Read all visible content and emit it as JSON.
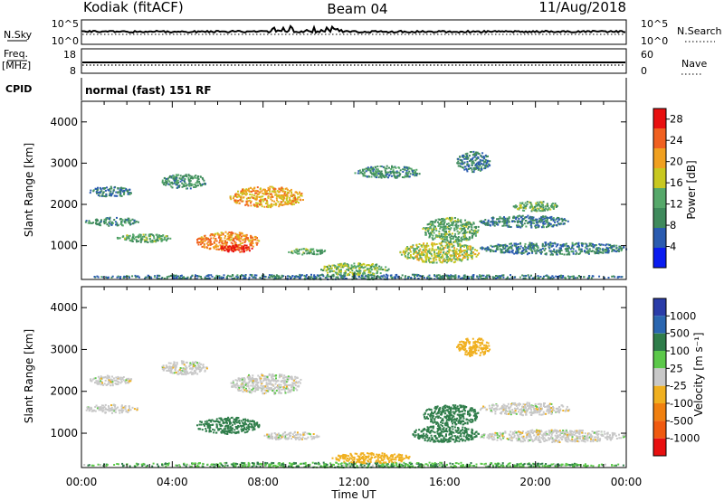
{
  "header": {
    "station": "Kodiak (fitACF)",
    "beam": "Beam 04",
    "date": "11/Aug/2018"
  },
  "noise_panel": {
    "left_label": "N.Sky",
    "left_ticks": [
      "10^5",
      "10^0"
    ],
    "right_ticks": [
      "10^5",
      "10^0"
    ],
    "right_label": "N.Search"
  },
  "freq_panel": {
    "left_label_1": "Freq.",
    "left_label_2": "[MHz]",
    "left_ticks": [
      "18",
      "8"
    ],
    "right_ticks": [
      "60",
      "0"
    ],
    "right_label": "Nave"
  },
  "cpid_panel": {
    "label": "CPID",
    "mode_text": "normal (fast) 151 RF"
  },
  "xaxis": {
    "label": "Time UT",
    "ticks": [
      "00:00",
      "04:00",
      "08:00",
      "12:00",
      "16:00",
      "20:00",
      "00:00"
    ]
  },
  "colors": {
    "power_scale": [
      "#0a1cf0",
      "#2a5bb0",
      "#3f8a5c",
      "#56a86a",
      "#c8c820",
      "#f0a020",
      "#f06020",
      "#e81010"
    ],
    "velocity_scale": [
      "#2a3ca8",
      "#2a66b0",
      "#2f7d4a",
      "#5cc84a",
      "#c8c8c8",
      "#f0b020",
      "#f08010",
      "#f05a10",
      "#e81010"
    ]
  },
  "chart_data": [
    {
      "type": "heatmap",
      "title": "",
      "xlabel": "Time UT",
      "ylabel": "Slant Range [km]",
      "xlim": [
        0,
        24
      ],
      "ylim": [
        180,
        4500
      ],
      "yticks": [
        "1000",
        "2000",
        "3000",
        "4000"
      ],
      "colorbar": {
        "label": "Power [dB]",
        "ticks": [
          "4",
          "8",
          "12",
          "16",
          "20",
          "24",
          "28"
        ],
        "range": [
          0,
          30
        ]
      },
      "features": [
        {
          "t0": 0.0,
          "t1": 24.0,
          "r0": 200,
          "r1": 320,
          "value": 8
        },
        {
          "t0": 0.1,
          "t1": 2.5,
          "r0": 1500,
          "r1": 1700,
          "value": 10
        },
        {
          "t0": 0.3,
          "t1": 2.2,
          "r0": 2200,
          "r1": 2450,
          "value": 8
        },
        {
          "t0": 1.5,
          "t1": 4.0,
          "r0": 1100,
          "r1": 1300,
          "value": 12
        },
        {
          "t0": 3.5,
          "t1": 5.5,
          "r0": 2400,
          "r1": 2750,
          "value": 10
        },
        {
          "t0": 5.0,
          "t1": 7.8,
          "r0": 900,
          "r1": 1350,
          "value": 22
        },
        {
          "t0": 6.0,
          "t1": 7.5,
          "r0": 850,
          "r1": 1050,
          "value": 28
        },
        {
          "t0": 6.5,
          "t1": 9.8,
          "r0": 1950,
          "r1": 2450,
          "value": 20
        },
        {
          "t0": 9.0,
          "t1": 10.8,
          "r0": 800,
          "r1": 950,
          "value": 12
        },
        {
          "t0": 10.5,
          "t1": 13.5,
          "r0": 300,
          "r1": 600,
          "value": 14
        },
        {
          "t0": 12.0,
          "t1": 15.0,
          "r0": 2650,
          "r1": 2950,
          "value": 10
        },
        {
          "t0": 14.0,
          "t1": 17.5,
          "r0": 600,
          "r1": 1100,
          "value": 16
        },
        {
          "t0": 15.0,
          "t1": 17.5,
          "r0": 1100,
          "r1": 1700,
          "value": 12
        },
        {
          "t0": 17.5,
          "t1": 21.5,
          "r0": 1450,
          "r1": 1750,
          "value": 8
        },
        {
          "t0": 17.5,
          "t1": 24.0,
          "r0": 800,
          "r1": 1100,
          "value": 8
        },
        {
          "t0": 16.5,
          "t1": 18.0,
          "r0": 2800,
          "r1": 3300,
          "value": 8
        },
        {
          "t0": 19.0,
          "t1": 21.0,
          "r0": 1850,
          "r1": 2100,
          "value": 12
        }
      ]
    },
    {
      "type": "heatmap",
      "title": "",
      "xlabel": "Time UT",
      "ylabel": "Slant Range [km]",
      "xlim": [
        0,
        24
      ],
      "ylim": [
        180,
        4500
      ],
      "yticks": [
        "1000",
        "2000",
        "3000",
        "4000"
      ],
      "colorbar": {
        "label": "Velocity [m s⁻¹]",
        "ticks": [
          "1000",
          "500",
          "100",
          "25",
          "-25",
          "-100",
          "-500",
          "-1000"
        ],
        "range": [
          -1000,
          1000
        ]
      },
      "features": [
        {
          "t0": 0.0,
          "t1": 24.0,
          "r0": 200,
          "r1": 320,
          "value": 50
        },
        {
          "t0": 0.1,
          "t1": 2.5,
          "r0": 1500,
          "r1": 1700,
          "value": 0
        },
        {
          "t0": 0.3,
          "t1": 2.2,
          "r0": 2150,
          "r1": 2400,
          "value": 0
        },
        {
          "t0": 3.5,
          "t1": 5.5,
          "r0": 2400,
          "r1": 2750,
          "value": 0
        },
        {
          "t0": 5.0,
          "t1": 7.8,
          "r0": 1000,
          "r1": 1400,
          "value": 100
        },
        {
          "t0": 6.5,
          "t1": 9.8,
          "r0": 1950,
          "r1": 2450,
          "value": 0
        },
        {
          "t0": 8.0,
          "t1": 10.5,
          "r0": 850,
          "r1": 1050,
          "value": 0
        },
        {
          "t0": 11.0,
          "t1": 14.5,
          "r0": 300,
          "r1": 550,
          "value": -60
        },
        {
          "t0": 14.5,
          "t1": 17.5,
          "r0": 800,
          "r1": 1200,
          "value": 150
        },
        {
          "t0": 15.0,
          "t1": 17.5,
          "r0": 1200,
          "r1": 1700,
          "value": 200
        },
        {
          "t0": 17.5,
          "t1": 21.5,
          "r0": 1450,
          "r1": 1750,
          "value": 0
        },
        {
          "t0": 17.5,
          "t1": 24.0,
          "r0": 800,
          "r1": 1100,
          "value": 0
        },
        {
          "t0": 16.5,
          "t1": 18.0,
          "r0": 2850,
          "r1": 3300,
          "value": -60
        }
      ]
    }
  ]
}
